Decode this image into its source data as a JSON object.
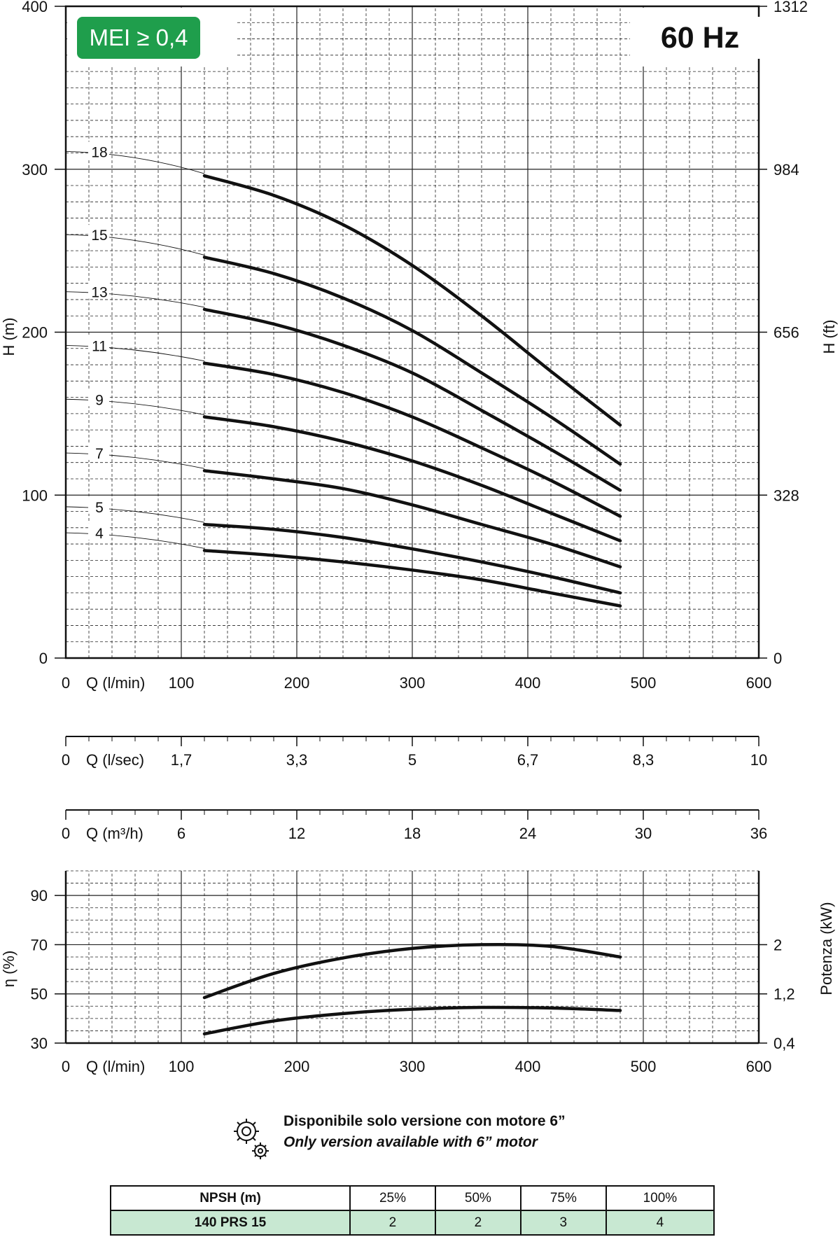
{
  "badges": {
    "mei": "MEI ≥ 0,4",
    "frequency": "60 Hz"
  },
  "chart_data": [
    {
      "type": "line",
      "title": "",
      "xlabel": "Q (l/min)",
      "ylabel": "H (m)",
      "y2label": "H (ft)",
      "xlim": [
        0,
        600
      ],
      "ylim": [
        0,
        400
      ],
      "xticks": [
        "0",
        "100",
        "200",
        "300",
        "400",
        "500",
        "600"
      ],
      "yticks": [
        "0",
        "100",
        "200",
        "300",
        "400"
      ],
      "y2ticks": [
        "0",
        "328",
        "656",
        "984",
        "1312"
      ],
      "grid": true,
      "x": [
        120,
        180,
        240,
        300,
        360,
        420,
        480
      ],
      "series": [
        {
          "name": "18",
          "values": [
            296,
            284,
            266,
            241,
            210,
            176,
            143
          ]
        },
        {
          "name": "15",
          "values": [
            246,
            236,
            221,
            201,
            175,
            148,
            119
          ]
        },
        {
          "name": "13",
          "values": [
            214,
            205,
            192,
            175,
            152,
            128,
            103
          ]
        },
        {
          "name": "11",
          "values": [
            181,
            174,
            163,
            148,
            129,
            109,
            87
          ]
        },
        {
          "name": "9",
          "values": [
            148,
            142,
            133,
            121,
            106,
            89,
            72
          ]
        },
        {
          "name": "7",
          "values": [
            115,
            110,
            104,
            94,
            82,
            70,
            56
          ]
        },
        {
          "name": "5",
          "values": [
            82,
            79,
            74,
            67,
            59,
            50,
            40
          ]
        },
        {
          "name": "4",
          "values": [
            66,
            63,
            59,
            54,
            48,
            40,
            32
          ]
        }
      ]
    },
    {
      "type": "axis",
      "xlabel": "Q (l/sec)",
      "ticks": [
        "0",
        "1,7",
        "3,3",
        "5",
        "6,7",
        "8,3",
        "10"
      ]
    },
    {
      "type": "axis",
      "xlabel": "Q (m³/h)",
      "ticks": [
        "0",
        "6",
        "12",
        "18",
        "24",
        "30",
        "36"
      ]
    },
    {
      "type": "line",
      "xlabel": "Q (l/min)",
      "ylabel": "η (%)",
      "y2label": "Potenza (kW)",
      "xlim": [
        0,
        600
      ],
      "ylim": [
        30,
        100
      ],
      "xticks": [
        "0",
        "100",
        "200",
        "300",
        "400",
        "500",
        "600"
      ],
      "yticks": [
        "30",
        "50",
        "70",
        "90"
      ],
      "y2ticks": [
        "0,4",
        "1,2",
        "2"
      ],
      "grid": true,
      "x": [
        120,
        180,
        240,
        300,
        360,
        420,
        480
      ],
      "series": [
        {
          "axis": "left",
          "values": [
            48.5,
            58.3,
            64.6,
            68.5,
            70.0,
            69.3,
            65.0
          ]
        },
        {
          "axis": "right",
          "values": [
            0.55,
            0.76,
            0.88,
            0.95,
            0.98,
            0.97,
            0.93
          ]
        }
      ]
    }
  ],
  "note": {
    "icon": "gear-icon",
    "line1": "Disponibile solo versione con motore 6”",
    "line2": "Only version available with 6” motor"
  },
  "npsh_table": {
    "header": [
      "NPSH (m)",
      "25%",
      "50%",
      "75%",
      "100%"
    ],
    "row": [
      "140 PRS 15",
      "2",
      "2",
      "3",
      "4"
    ]
  },
  "colors": {
    "badge_green": "#1f9e4c",
    "table_green": "#c8e8d2"
  }
}
